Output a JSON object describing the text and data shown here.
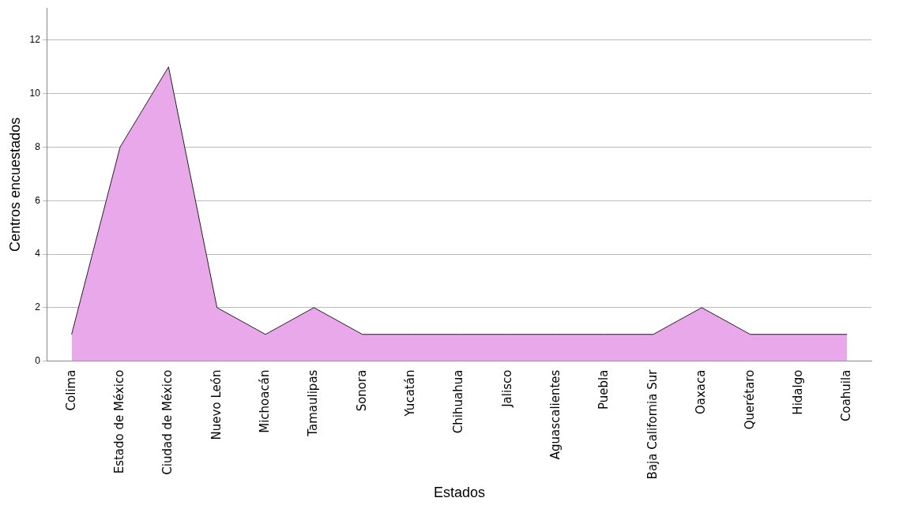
{
  "chart_data": {
    "type": "area",
    "xlabel": "Estados",
    "ylabel": "Centros encuestados",
    "categories": [
      "Colima",
      "Estado de México",
      "Ciudad de México",
      "Nuevo León",
      "Michoacán",
      "Tamaulipas",
      "Sonora",
      "Yucatán",
      "Chihuahua",
      "Jalisco",
      "Aguascalientes",
      "Puebla",
      "Baja California Sur",
      "Oaxaca",
      "Querétaro",
      "Hidalgo",
      "Coahuila"
    ],
    "series": [
      {
        "color": "#e9a8e9",
        "values": [
          1,
          8,
          11,
          2,
          1,
          2,
          1,
          1,
          1,
          1,
          1,
          1,
          1,
          2,
          1,
          1,
          1
        ]
      }
    ],
    "ylim": [
      0,
      13.2
    ],
    "yticks": [
      0,
      2,
      4,
      6,
      8,
      10,
      12
    ],
    "grid": "y",
    "legend": false
  }
}
